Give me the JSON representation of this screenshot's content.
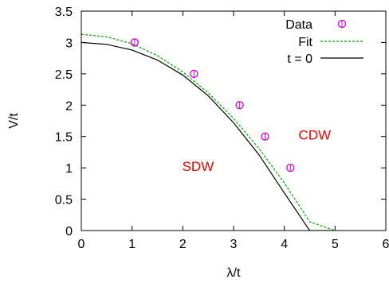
{
  "chart_data": {
    "type": "scatter",
    "xlabel": "λ/t",
    "ylabel": "V/t",
    "xlim": [
      0,
      6
    ],
    "ylim": [
      0,
      3.5
    ],
    "xticks": [
      "0",
      "1",
      "2",
      "3",
      "4",
      "5",
      "6"
    ],
    "yticks": [
      "0",
      "0.5",
      "1",
      "1.5",
      "2",
      "2.5",
      "3",
      "3.5"
    ],
    "grid": false,
    "legend_position": "top-right",
    "series": [
      {
        "name": "Data",
        "kind": "scatter",
        "marker": "open-circle",
        "color": "#cc00cc",
        "x": [
          1.05,
          2.22,
          3.12,
          3.62,
          4.12
        ],
        "y": [
          3.0,
          2.5,
          2.0,
          1.5,
          1.0
        ],
        "yerr": [
          0.05,
          0.05,
          0.05,
          0.05,
          0.05
        ]
      },
      {
        "name": "Fit",
        "kind": "line",
        "dash": "dashed",
        "color": "#00a000",
        "x": [
          0,
          0.5,
          1,
          1.5,
          2,
          2.5,
          3,
          3.5,
          4,
          4.5,
          5.0
        ],
        "y": [
          3.13,
          3.09,
          2.98,
          2.79,
          2.53,
          2.2,
          1.79,
          1.31,
          0.76,
          0.14,
          0.0
        ]
      },
      {
        "name": "t = 0",
        "kind": "line",
        "dash": "solid",
        "color": "#000000",
        "x": [
          0,
          0.5,
          1,
          1.5,
          2,
          2.5,
          3,
          3.5,
          4,
          4.5,
          4.9
        ],
        "y": [
          3.0,
          2.97,
          2.88,
          2.72,
          2.48,
          2.15,
          1.72,
          1.21,
          0.6,
          0.0,
          0.0
        ]
      }
    ],
    "annotations": [
      {
        "text": "SDW",
        "x": 2.3,
        "y": 0.95,
        "color": "#ee0000"
      },
      {
        "text": "CDW",
        "x": 4.6,
        "y": 1.45,
        "color": "#ee0000"
      }
    ]
  }
}
